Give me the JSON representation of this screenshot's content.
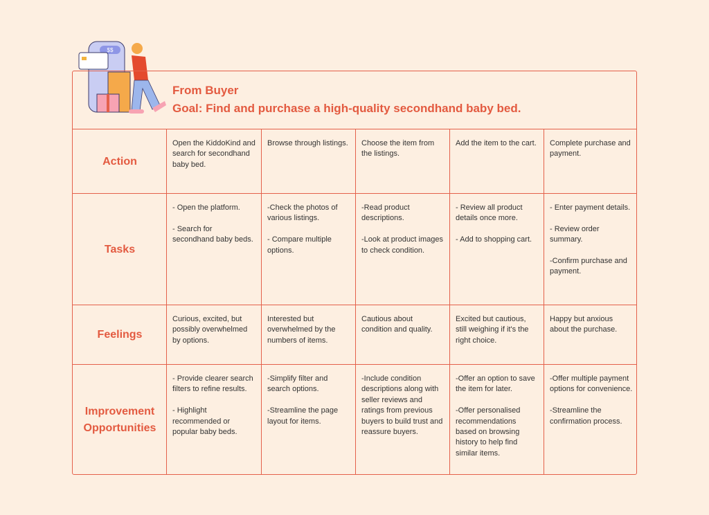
{
  "header": {
    "title": "From Buyer",
    "goal": "Goal: Find and purchase a high-quality secondhand baby bed.",
    "badge": "$$"
  },
  "rows": [
    {
      "label": "Action",
      "cells": [
        [
          "Open the KiddoKind and search for secondhand baby bed."
        ],
        [
          "Browse through listings."
        ],
        [
          "Choose the item from the listings."
        ],
        [
          "Add the item to the cart."
        ],
        [
          "Complete purchase and payment."
        ]
      ]
    },
    {
      "label": "Tasks",
      "cells": [
        [
          "- Open the platform.",
          "- Search for secondhand baby beds."
        ],
        [
          "-Check the photos of various listings.",
          "- Compare multiple options."
        ],
        [
          "-Read product descriptions.",
          "-Look at product images to check condition."
        ],
        [
          "- Review all product details once more.",
          "- Add to shopping cart."
        ],
        [
          "- Enter payment details.",
          "- Review order summary.",
          "-Confirm purchase and payment."
        ]
      ]
    },
    {
      "label": "Feelings",
      "cells": [
        [
          "Curious, excited, but possibly overwhelmed by options."
        ],
        [
          "Interested but overwhelmed by the numbers of items."
        ],
        [
          "Cautious about condition and quality."
        ],
        [
          "Excited but cautious, still weighing if it's the right choice."
        ],
        [
          "Happy but anxious about the purchase."
        ]
      ]
    },
    {
      "label": "Improvement Opportunities",
      "cells": [
        [
          "- Provide clearer search filters to refine results.",
          "- Highlight recommended or popular baby beds."
        ],
        [
          "-Simplify filter and search options.",
          "-Streamline the page layout for items."
        ],
        [
          "-Include condition descriptions along with seller reviews and ratings from previous buyers to build trust and reassure buyers."
        ],
        [
          "-Offer an option to save the item for later.",
          "-Offer personalised recommendations based on browsing history to help find similar items."
        ],
        [
          "-Offer multiple payment options for convenience.",
          "-Streamline the confirmation process."
        ]
      ]
    }
  ]
}
